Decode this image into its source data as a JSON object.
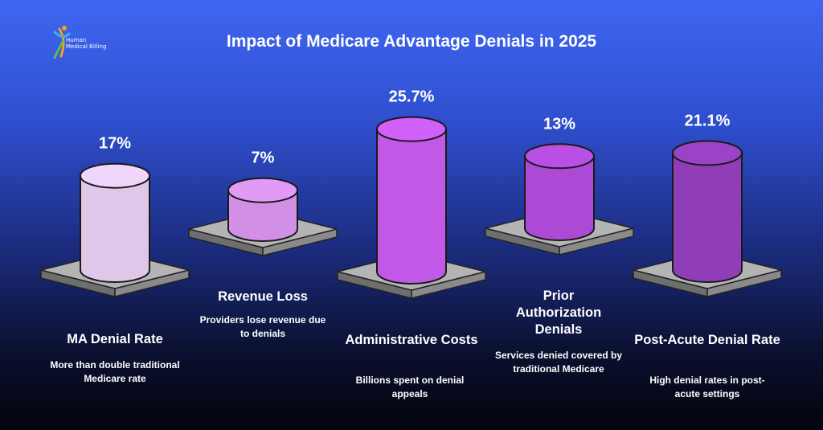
{
  "logo": {
    "line1": "Human",
    "line2": "Medical Billing"
  },
  "chart_data": {
    "type": "bar",
    "title": "Impact of Medicare Advantage Denials in 2025",
    "unit": "%",
    "categories": [
      "MA Denial Rate",
      "Revenue Loss",
      "Administrative Costs",
      "Prior Authorization Denials",
      "Post-Acute Denial Rate"
    ],
    "values": [
      17,
      7,
      25.7,
      13,
      21.1
    ],
    "value_labels": [
      "17%",
      "7%",
      "25.7%",
      "13%",
      "21.1%"
    ],
    "descriptions": [
      "More than double traditional Medicare rate",
      "Providers lose revenue due to denials",
      "Billions spent on denial appeals",
      "Services denied covered by traditional Medicare",
      "High denial rates in post-acute settings"
    ],
    "colors": [
      "#f0d6fb",
      "#e19bf7",
      "#d060f7",
      "#b94fe5",
      "#9b43c6"
    ]
  }
}
